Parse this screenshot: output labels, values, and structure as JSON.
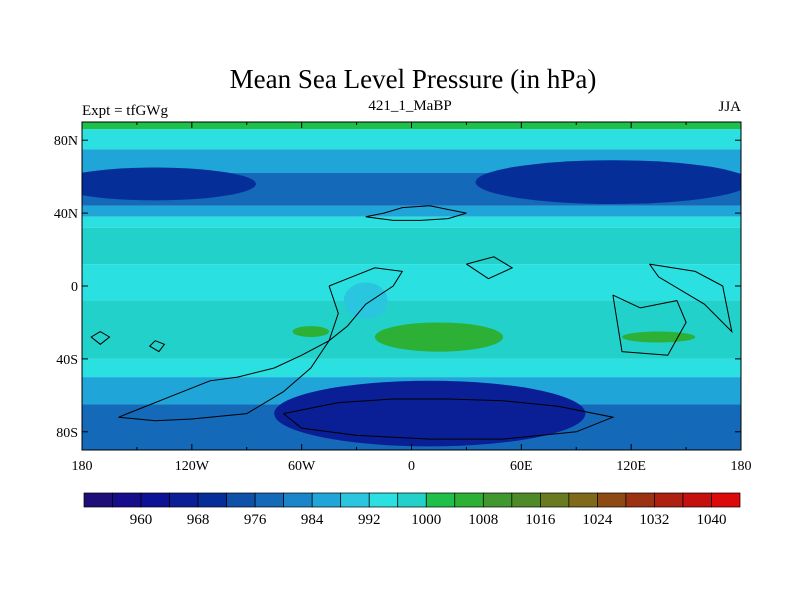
{
  "chart_data": {
    "type": "heatmap",
    "title": "Mean Sea Level Pressure (in hPa)",
    "left_label": "Expt = tfGWg",
    "center_label": "421_1_MaBP",
    "right_label": "JJA",
    "x_ticks": [
      "180",
      "120W",
      "60W",
      "0",
      "60E",
      "120E",
      "180"
    ],
    "y_ticks": [
      "80N",
      "40N",
      "0",
      "40S",
      "80S"
    ],
    "xlim": [
      -180,
      180
    ],
    "ylim": [
      -90,
      90
    ],
    "colorbar": {
      "levels": [
        956,
        960,
        964,
        968,
        972,
        976,
        980,
        984,
        988,
        992,
        996,
        1000,
        1004,
        1008,
        1012,
        1016,
        1020,
        1024,
        1028,
        1032,
        1036,
        1040
      ],
      "labels": [
        "960",
        "968",
        "976",
        "984",
        "992",
        "1000",
        "1008",
        "1016",
        "1024",
        "1032",
        "1040"
      ],
      "colors": [
        "#1e0e78",
        "#160d8c",
        "#0d1195",
        "#0a1f96",
        "#062e99",
        "#0f50a8",
        "#1469b8",
        "#1a86c9",
        "#20a5d8",
        "#2ac6e0",
        "#2ae0e0",
        "#22d1c9",
        "#1fbf4c",
        "#2cb035",
        "#41982e",
        "#4f8a28",
        "#697a20",
        "#7f6a1c",
        "#8e4a14",
        "#9b3313",
        "#ad2012",
        "#c51010",
        "#dc0a0a"
      ]
    },
    "bands": [
      {
        "lat_top": 90,
        "lat_bottom": 86,
        "value": 1002
      },
      {
        "lat_top": 86,
        "lat_bottom": 75,
        "value": 994
      },
      {
        "lat_top": 75,
        "lat_bottom": 62,
        "value": 986
      },
      {
        "lat_top": 62,
        "lat_bottom": 44,
        "value": 978
      },
      {
        "lat_top": 44,
        "lat_bottom": 38,
        "value": 986
      },
      {
        "lat_top": 38,
        "lat_bottom": 32,
        "value": 994
      },
      {
        "lat_top": 32,
        "lat_bottom": 12,
        "value": 998
      },
      {
        "lat_top": 12,
        "lat_bottom": -8,
        "value": 994
      },
      {
        "lat_top": -8,
        "lat_bottom": -40,
        "value": 998
      },
      {
        "lat_top": -40,
        "lat_bottom": -50,
        "value": 994
      },
      {
        "lat_top": -50,
        "lat_bottom": -65,
        "value": 986
      },
      {
        "lat_top": -65,
        "lat_bottom": -90,
        "value": 978
      }
    ],
    "highlights": [
      {
        "lon_center": -140,
        "lat_center": 56,
        "lon_radius": 55,
        "lat_radius": 9,
        "value": 970
      },
      {
        "lon_center": 110,
        "lat_center": 57,
        "lon_radius": 75,
        "lat_radius": 12,
        "value": 970
      },
      {
        "lon_center": 10,
        "lat_center": -70,
        "lon_radius": 85,
        "lat_radius": 18,
        "value": 966
      },
      {
        "lon_center": 15,
        "lat_center": -28,
        "lon_radius": 35,
        "lat_radius": 8,
        "value": 1006
      },
      {
        "lon_center": 135,
        "lat_center": -28,
        "lon_radius": 20,
        "lat_radius": 3,
        "value": 1006
      },
      {
        "lon_center": -55,
        "lat_center": -25,
        "lon_radius": 10,
        "lat_radius": 3,
        "value": 1006
      },
      {
        "lon_center": -25,
        "lat_center": -8,
        "lon_radius": 12,
        "lat_radius": 10,
        "value": 988
      }
    ],
    "land_outlines": [
      [
        [
          -25,
          38
        ],
        [
          -15,
          40
        ],
        [
          -5,
          43
        ],
        [
          10,
          44
        ],
        [
          20,
          42
        ],
        [
          30,
          40
        ],
        [
          20,
          37
        ],
        [
          5,
          36
        ],
        [
          -10,
          36
        ],
        [
          -25,
          38
        ]
      ],
      [
        [
          -45,
          0
        ],
        [
          -35,
          4
        ],
        [
          -20,
          10
        ],
        [
          -5,
          8
        ],
        [
          -10,
          0
        ],
        [
          -25,
          -10
        ],
        [
          -35,
          -22
        ],
        [
          -45,
          -30
        ],
        [
          -60,
          -38
        ],
        [
          -75,
          -45
        ],
        [
          -95,
          -50
        ],
        [
          -110,
          -52
        ],
        [
          -130,
          -60
        ],
        [
          -150,
          -68
        ],
        [
          -160,
          -72
        ],
        [
          -140,
          -74
        ],
        [
          -120,
          -73
        ],
        [
          -90,
          -70
        ],
        [
          -70,
          -58
        ],
        [
          -55,
          -45
        ],
        [
          -45,
          -30
        ],
        [
          -40,
          -15
        ],
        [
          -45,
          0
        ]
      ],
      [
        [
          -70,
          -70
        ],
        [
          -40,
          -64
        ],
        [
          -10,
          -62
        ],
        [
          20,
          -62
        ],
        [
          50,
          -63
        ],
        [
          80,
          -66
        ],
        [
          110,
          -72
        ],
        [
          90,
          -80
        ],
        [
          50,
          -84
        ],
        [
          10,
          -84
        ],
        [
          -30,
          -82
        ],
        [
          -60,
          -78
        ],
        [
          -70,
          -70
        ]
      ],
      [
        [
          110,
          -5
        ],
        [
          125,
          -12
        ],
        [
          145,
          -8
        ],
        [
          150,
          -20
        ],
        [
          140,
          -38
        ],
        [
          115,
          -36
        ],
        [
          110,
          -5
        ]
      ],
      [
        [
          130,
          12
        ],
        [
          155,
          8
        ],
        [
          170,
          0
        ],
        [
          175,
          -25
        ],
        [
          160,
          -10
        ],
        [
          135,
          5
        ],
        [
          130,
          12
        ]
      ],
      [
        [
          -170,
          -25
        ],
        [
          -165,
          -28
        ],
        [
          -170,
          -32
        ],
        [
          -175,
          -28
        ],
        [
          -170,
          -25
        ]
      ],
      [
        [
          -140,
          -30
        ],
        [
          -135,
          -32
        ],
        [
          -138,
          -36
        ],
        [
          -143,
          -33
        ],
        [
          -140,
          -30
        ]
      ],
      [
        [
          30,
          12
        ],
        [
          45,
          16
        ],
        [
          55,
          10
        ],
        [
          42,
          4
        ],
        [
          30,
          12
        ]
      ]
    ]
  }
}
